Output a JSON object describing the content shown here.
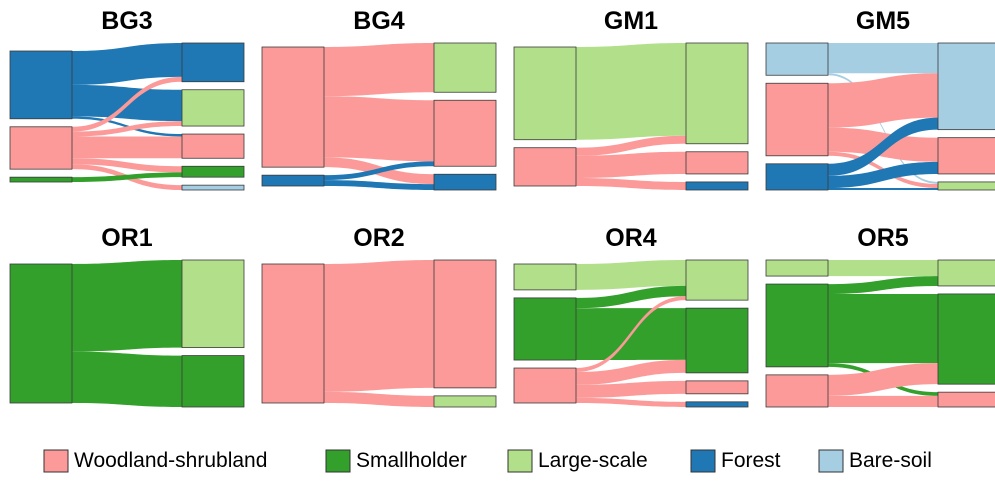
{
  "chart_data": {
    "type": "sankey",
    "colors": {
      "Woodland-shrubland": "#FB9A99",
      "Smallholder": "#33A02C",
      "Large-scale": "#B2DF8A",
      "Forest": "#1F78B4",
      "Bare-soil": "#A6CEE3"
    },
    "legend": {
      "position": "bottom",
      "items": [
        "Woodland-shrubland",
        "Smallholder",
        "Large-scale",
        "Forest",
        "Bare-soil"
      ]
    },
    "panels": [
      {
        "title": "BG3",
        "left": [
          "Forest",
          "Woodland-shrubland",
          "Smallholder"
        ],
        "right": [
          "Forest",
          "Large-scale",
          "Woodland-shrubland",
          "Smallholder",
          "Bare-soil"
        ],
        "flows": [
          [
            "Forest",
            "Forest",
            28
          ],
          [
            "Forest",
            "Large-scale",
            26
          ],
          [
            "Forest",
            "Woodland-shrubland",
            2
          ],
          [
            "Woodland-shrubland",
            "Forest",
            4
          ],
          [
            "Woodland-shrubland",
            "Large-scale",
            4
          ],
          [
            "Woodland-shrubland",
            "Woodland-shrubland",
            18
          ],
          [
            "Woodland-shrubland",
            "Smallholder",
            5
          ],
          [
            "Woodland-shrubland",
            "Bare-soil",
            4
          ],
          [
            "Smallholder",
            "Smallholder",
            4
          ]
        ]
      },
      {
        "title": "BG4",
        "left": [
          "Woodland-shrubland",
          "Forest"
        ],
        "right": [
          "Large-scale",
          "Woodland-shrubland",
          "Forest"
        ],
        "flows": [
          [
            "Woodland-shrubland",
            "Large-scale",
            50
          ],
          [
            "Woodland-shrubland",
            "Woodland-shrubland",
            62
          ],
          [
            "Woodland-shrubland",
            "Forest",
            10
          ],
          [
            "Forest",
            "Woodland-shrubland",
            5
          ],
          [
            "Forest",
            "Forest",
            6
          ]
        ]
      },
      {
        "title": "GM1",
        "left": [
          "Large-scale",
          "Woodland-shrubland"
        ],
        "right": [
          "Large-scale",
          "Woodland-shrubland",
          "Forest"
        ],
        "flows": [
          [
            "Large-scale",
            "Large-scale",
            92
          ],
          [
            "Woodland-shrubland",
            "Large-scale",
            8
          ],
          [
            "Woodland-shrubland",
            "Woodland-shrubland",
            22
          ],
          [
            "Woodland-shrubland",
            "Forest",
            8
          ]
        ]
      },
      {
        "title": "GM5",
        "left": [
          "Bare-soil",
          "Woodland-shrubland",
          "Forest"
        ],
        "right": [
          "Bare-soil",
          "Woodland-shrubland",
          "Large-scale"
        ],
        "flows": [
          [
            "Bare-soil",
            "Bare-soil",
            30
          ],
          [
            "Bare-soil",
            "Large-scale",
            2
          ],
          [
            "Woodland-shrubland",
            "Bare-soil",
            44
          ],
          [
            "Woodland-shrubland",
            "Woodland-shrubland",
            24
          ],
          [
            "Woodland-shrubland",
            "Large-scale",
            4
          ],
          [
            "Forest",
            "Bare-soil",
            12
          ],
          [
            "Forest",
            "Woodland-shrubland",
            12
          ],
          [
            "Forest",
            "Large-scale",
            2
          ]
        ]
      },
      {
        "title": "OR1",
        "left": [
          "Smallholder"
        ],
        "right": [
          "Large-scale",
          "Smallholder"
        ],
        "flows": [
          [
            "Smallholder",
            "Large-scale",
            63
          ],
          [
            "Smallholder",
            "Smallholder",
            37
          ]
        ]
      },
      {
        "title": "OR2",
        "left": [
          "Woodland-shrubland"
        ],
        "right": [
          "Woodland-shrubland",
          "Large-scale"
        ],
        "flows": [
          [
            "Woodland-shrubland",
            "Woodland-shrubland",
            92
          ],
          [
            "Woodland-shrubland",
            "Large-scale",
            8
          ]
        ]
      },
      {
        "title": "OR4",
        "left": [
          "Large-scale",
          "Smallholder",
          "Woodland-shrubland"
        ],
        "right": [
          "Large-scale",
          "Smallholder",
          "Woodland-shrubland",
          "Forest"
        ],
        "flows": [
          [
            "Large-scale",
            "Large-scale",
            20
          ],
          [
            "Smallholder",
            "Large-scale",
            8
          ],
          [
            "Smallholder",
            "Smallholder",
            40
          ],
          [
            "Woodland-shrubland",
            "Large-scale",
            3
          ],
          [
            "Woodland-shrubland",
            "Smallholder",
            10
          ],
          [
            "Woodland-shrubland",
            "Woodland-shrubland",
            10
          ],
          [
            "Woodland-shrubland",
            "Forest",
            4
          ]
        ]
      },
      {
        "title": "OR5",
        "left": [
          "Large-scale",
          "Smallholder",
          "Woodland-shrubland"
        ],
        "right": [
          "Large-scale",
          "Smallholder",
          "Woodland-shrubland"
        ],
        "flows": [
          [
            "Large-scale",
            "Large-scale",
            13
          ],
          [
            "Smallholder",
            "Large-scale",
            8
          ],
          [
            "Smallholder",
            "Smallholder",
            56
          ],
          [
            "Smallholder",
            "Woodland-shrubland",
            3
          ],
          [
            "Woodland-shrubland",
            "Smallholder",
            17
          ],
          [
            "Woodland-shrubland",
            "Woodland-shrubland",
            9
          ]
        ]
      }
    ]
  }
}
